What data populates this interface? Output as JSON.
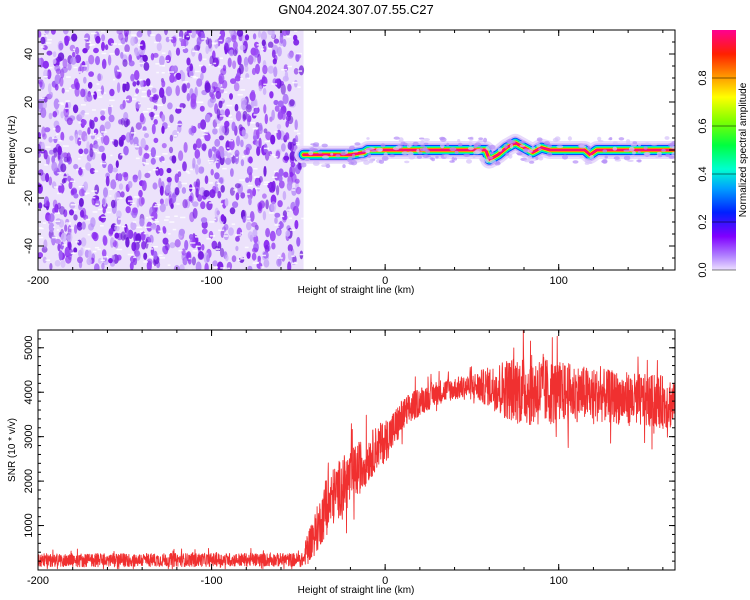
{
  "title": "GN04.2024.307.07.55.C27",
  "chart_data": [
    {
      "type": "heatmap",
      "xlabel": "Height of straight line (km)",
      "ylabel": "Frequency (Hz)",
      "xlim": [
        -200,
        167
      ],
      "ylim": [
        -50,
        50
      ],
      "x_ticks": [
        -200,
        -100,
        0,
        100
      ],
      "y_ticks": [
        -40,
        -20,
        0,
        20,
        40
      ],
      "noise_region_x": [
        -200,
        -47
      ],
      "colorbar": {
        "label": "Normalized spectral amplitude",
        "range": [
          0,
          1
        ],
        "ticks": [
          0.0,
          0.2,
          0.4,
          0.6,
          0.8
        ],
        "colors": [
          "#e0c8ff",
          "#8000ff",
          "#0040ff",
          "#00c8ff",
          "#00ff80",
          "#80ff00",
          "#ffff00",
          "#ffa000",
          "#ff3000",
          "#ff0090"
        ]
      },
      "ridge": [
        {
          "x": -47,
          "y": -2
        },
        {
          "x": -20,
          "y": -2
        },
        {
          "x": -12,
          "y": -1
        },
        {
          "x": -10,
          "y": 0
        },
        {
          "x": 58,
          "y": 0
        },
        {
          "x": 60,
          "y": -4
        },
        {
          "x": 65,
          "y": -2
        },
        {
          "x": 70,
          "y": 1
        },
        {
          "x": 75,
          "y": 3
        },
        {
          "x": 80,
          "y": 1
        },
        {
          "x": 85,
          "y": -1
        },
        {
          "x": 90,
          "y": 1
        },
        {
          "x": 95,
          "y": 0
        },
        {
          "x": 110,
          "y": 0
        },
        {
          "x": 115,
          "y": 0
        },
        {
          "x": 118,
          "y": -2
        },
        {
          "x": 122,
          "y": 0
        },
        {
          "x": 140,
          "y": 0
        },
        {
          "x": 167,
          "y": 0
        }
      ]
    },
    {
      "type": "line",
      "xlabel": "Height of straight line (km)",
      "ylabel": "SNR (10 * v/v)",
      "xlim": [
        -200,
        167
      ],
      "ylim": [
        0,
        5400
      ],
      "x_ticks": [
        -200,
        -100,
        0,
        100
      ],
      "y_ticks": [
        1000,
        2000,
        3000,
        4000,
        5000
      ],
      "series": [
        {
          "color": "#f03030",
          "x": [
            -200,
            -150,
            -100,
            -60,
            -47,
            -45,
            -40,
            -35,
            -30,
            -25,
            -20,
            -15,
            -10,
            -5,
            0,
            5,
            10,
            15,
            20,
            25,
            30,
            40,
            50,
            60,
            70,
            80,
            90,
            100,
            110,
            120,
            130,
            140,
            150,
            160,
            167
          ],
          "y": [
            220,
            220,
            230,
            230,
            230,
            500,
            850,
            1300,
            1650,
            1900,
            2050,
            2300,
            2500,
            2750,
            2900,
            3150,
            3450,
            3650,
            3800,
            3900,
            4000,
            4080,
            4130,
            4120,
            4080,
            4050,
            4020,
            4000,
            3980,
            3950,
            3900,
            3850,
            3800,
            3780,
            3760
          ],
          "spread": [
            150,
            150,
            150,
            150,
            150,
            350,
            500,
            600,
            650,
            650,
            650,
            600,
            550,
            500,
            480,
            450,
            400,
            350,
            320,
            300,
            280,
            250,
            300,
            450,
            700,
            800,
            800,
            700,
            650,
            600,
            600,
            600,
            600,
            600,
            600
          ]
        }
      ]
    }
  ]
}
